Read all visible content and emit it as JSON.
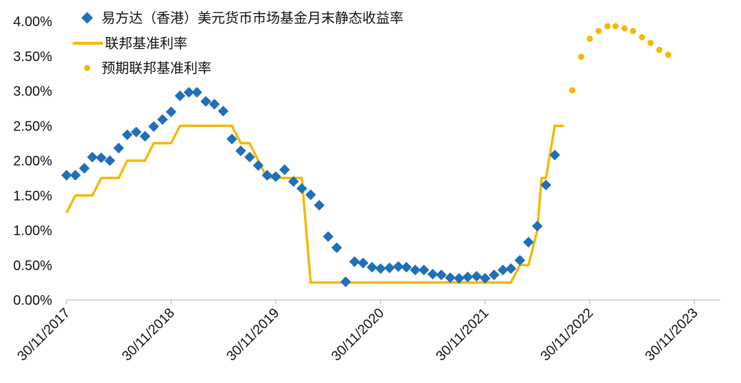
{
  "chart_data": {
    "type": "line",
    "y_axis": {
      "range": [
        0,
        0.04
      ],
      "ticks": [
        0,
        0.005,
        0.01,
        0.015,
        0.02,
        0.025,
        0.03,
        0.035,
        0.04
      ],
      "tick_labels": [
        "0.00%",
        "0.50%",
        "1.00%",
        "1.50%",
        "2.00%",
        "2.50%",
        "3.00%",
        "3.50%",
        "4.00%"
      ],
      "grid": false
    },
    "x_axis": {
      "range": [
        "2017-11-30",
        "2024-02-29"
      ],
      "ticks": [
        "2017-11-30",
        "2018-11-30",
        "2019-11-30",
        "2020-11-30",
        "2021-11-30",
        "2022-11-30",
        "2023-11-30"
      ],
      "tick_labels": [
        "30/11/2017",
        "30/11/2018",
        "30/11/2019",
        "30/11/2020",
        "30/11/2021",
        "30/11/2022",
        "30/11/2023"
      ]
    },
    "legend_position": "top-left",
    "colors": {
      "yield": "#1f6fb9",
      "fed": "#f5b800",
      "axis": "#c8c8c8",
      "text": "#111111"
    },
    "series": [
      {
        "name": "易方达（香港）美元货币市场基金月末静态收益率",
        "style": "diamond-markers",
        "points": [
          [
            "2017-11-30",
            0.0179
          ],
          [
            "2017-12-31",
            0.0179
          ],
          [
            "2018-01-31",
            0.0189
          ],
          [
            "2018-02-28",
            0.0205
          ],
          [
            "2018-03-31",
            0.0204
          ],
          [
            "2018-04-30",
            0.02
          ],
          [
            "2018-05-31",
            0.0218
          ],
          [
            "2018-06-30",
            0.0237
          ],
          [
            "2018-07-31",
            0.0241
          ],
          [
            "2018-08-31",
            0.0235
          ],
          [
            "2018-09-30",
            0.0249
          ],
          [
            "2018-10-31",
            0.0259
          ],
          [
            "2018-11-30",
            0.027
          ],
          [
            "2018-12-31",
            0.0293
          ],
          [
            "2019-01-31",
            0.0298
          ],
          [
            "2019-02-28",
            0.0298
          ],
          [
            "2019-03-31",
            0.0285
          ],
          [
            "2019-04-30",
            0.0281
          ],
          [
            "2019-05-31",
            0.0271
          ],
          [
            "2019-06-30",
            0.0231
          ],
          [
            "2019-07-31",
            0.0214
          ],
          [
            "2019-08-31",
            0.0205
          ],
          [
            "2019-09-30",
            0.0193
          ],
          [
            "2019-10-31",
            0.0179
          ],
          [
            "2019-11-30",
            0.0177
          ],
          [
            "2019-12-31",
            0.0187
          ],
          [
            "2020-01-31",
            0.017
          ],
          [
            "2020-02-29",
            0.016
          ],
          [
            "2020-03-31",
            0.0151
          ],
          [
            "2020-04-30",
            0.0136
          ],
          [
            "2020-05-31",
            0.0091
          ],
          [
            "2020-06-30",
            0.0075
          ],
          [
            "2020-07-31",
            0.0026
          ],
          [
            "2020-08-31",
            0.0055
          ],
          [
            "2020-09-30",
            0.0053
          ],
          [
            "2020-10-31",
            0.0047
          ],
          [
            "2020-11-30",
            0.0045
          ],
          [
            "2020-12-31",
            0.0046
          ],
          [
            "2021-01-31",
            0.0048
          ],
          [
            "2021-02-28",
            0.0047
          ],
          [
            "2021-03-31",
            0.0043
          ],
          [
            "2021-04-30",
            0.0043
          ],
          [
            "2021-05-31",
            0.0037
          ],
          [
            "2021-06-30",
            0.0036
          ],
          [
            "2021-07-31",
            0.0032
          ],
          [
            "2021-08-31",
            0.0031
          ],
          [
            "2021-09-30",
            0.0033
          ],
          [
            "2021-10-31",
            0.0034
          ],
          [
            "2021-11-30",
            0.0031
          ],
          [
            "2021-12-31",
            0.0036
          ],
          [
            "2022-01-31",
            0.0043
          ],
          [
            "2022-02-28",
            0.0045
          ],
          [
            "2022-03-31",
            0.0057
          ],
          [
            "2022-04-30",
            0.0083
          ],
          [
            "2022-05-31",
            0.0106
          ],
          [
            "2022-06-30",
            0.0165
          ],
          [
            "2022-07-31",
            0.0208
          ]
        ]
      },
      {
        "name": "联邦基准利率",
        "style": "line",
        "points": [
          [
            "2017-11-30",
            0.0125
          ],
          [
            "2017-12-31",
            0.015
          ],
          [
            "2018-02-28",
            0.015
          ],
          [
            "2018-03-31",
            0.0175
          ],
          [
            "2018-05-31",
            0.0175
          ],
          [
            "2018-06-30",
            0.02
          ],
          [
            "2018-08-31",
            0.02
          ],
          [
            "2018-09-30",
            0.0225
          ],
          [
            "2018-11-30",
            0.0225
          ],
          [
            "2018-12-31",
            0.025
          ],
          [
            "2019-06-30",
            0.025
          ],
          [
            "2019-07-31",
            0.0225
          ],
          [
            "2019-08-31",
            0.0225
          ],
          [
            "2019-09-30",
            0.02
          ],
          [
            "2019-10-31",
            0.0175
          ],
          [
            "2020-02-29",
            0.0175
          ],
          [
            "2020-03-31",
            0.0025
          ],
          [
            "2022-02-28",
            0.0025
          ],
          [
            "2022-03-31",
            0.005
          ],
          [
            "2022-04-30",
            0.005
          ],
          [
            "2022-05-31",
            0.01
          ],
          [
            "2022-06-15",
            0.0175
          ],
          [
            "2022-06-30",
            0.0175
          ],
          [
            "2022-07-31",
            0.025
          ],
          [
            "2022-08-31",
            0.025
          ]
        ]
      },
      {
        "name": "预期联邦基准利率",
        "style": "circle-markers",
        "points": [
          [
            "2022-09-30",
            0.0301
          ],
          [
            "2022-10-31",
            0.0349
          ],
          [
            "2022-11-30",
            0.0375
          ],
          [
            "2022-12-31",
            0.0386
          ],
          [
            "2023-01-31",
            0.0393
          ],
          [
            "2023-02-28",
            0.0393
          ],
          [
            "2023-03-31",
            0.039
          ],
          [
            "2023-04-30",
            0.0386
          ],
          [
            "2023-05-31",
            0.0377
          ],
          [
            "2023-06-30",
            0.0369
          ],
          [
            "2023-07-31",
            0.0359
          ],
          [
            "2023-08-31",
            0.0352
          ]
        ]
      }
    ]
  }
}
